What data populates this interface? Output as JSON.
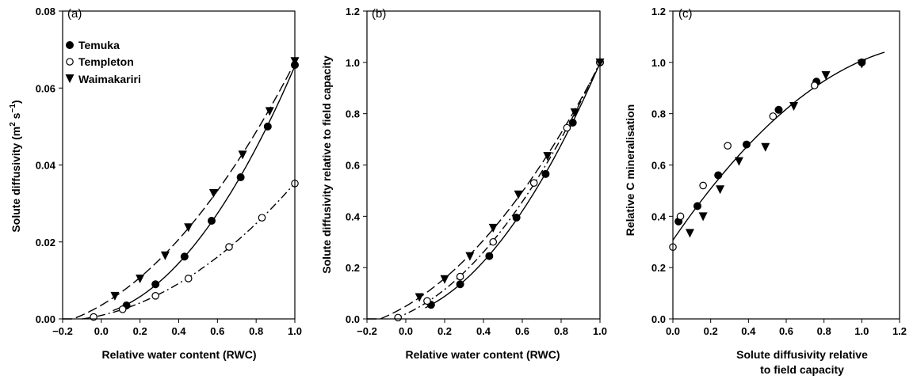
{
  "chart_data": [
    {
      "type": "scatter",
      "panel_label": "(a)",
      "xlabel": "Relative water content (RWC)",
      "ylabel": "Solute diffusivity (m² s⁻¹)",
      "ylabel_main": "Solute diffusivity (m",
      "ylabel_sup1": "2",
      "ylabel_mid": " s",
      "ylabel_sup2": "−1",
      "ylabel_end": ")",
      "xlim": [
        -0.2,
        1.0
      ],
      "ylim": [
        0,
        0.08
      ],
      "xticks": [
        -0.2,
        0.0,
        0.2,
        0.4,
        0.6,
        0.8,
        1.0
      ],
      "xtick_labels": [
        "−0.2",
        "0.0",
        "0.2",
        "0.4",
        "0.6",
        "0.8",
        "1.0"
      ],
      "yticks": [
        0,
        0.02,
        0.04,
        0.06,
        0.08
      ],
      "ytick_labels": [
        "0.00",
        "0.02",
        "0.04",
        "0.06",
        "0.08"
      ],
      "legend": [
        "Temuka",
        "Templeton",
        "Waimakariri"
      ],
      "legend_position": "top-left",
      "series": [
        {
          "name": "Temuka",
          "marker": "filled-circle",
          "line": "solid",
          "x": [
            0.13,
            0.28,
            0.43,
            0.57,
            0.72,
            0.86,
            1.0
          ],
          "y": [
            0.0035,
            0.009,
            0.0162,
            0.0255,
            0.0368,
            0.05,
            0.066
          ]
        },
        {
          "name": "Templeton",
          "marker": "open-circle",
          "line": "dash-dot",
          "x": [
            -0.04,
            0.11,
            0.28,
            0.45,
            0.66,
            0.83,
            1.0
          ],
          "y": [
            0.0005,
            0.0025,
            0.006,
            0.0105,
            0.0187,
            0.0263,
            0.0352
          ]
        },
        {
          "name": "Waimakariri",
          "marker": "filled-triangle-down",
          "line": "dashed",
          "x": [
            0.07,
            0.2,
            0.33,
            0.45,
            0.58,
            0.73,
            0.87,
            1.0
          ],
          "y": [
            0.006,
            0.0105,
            0.0165,
            0.0238,
            0.0327,
            0.0427,
            0.054,
            0.067
          ]
        }
      ]
    },
    {
      "type": "scatter",
      "panel_label": "(b)",
      "xlabel": "Relative water content (RWC)",
      "ylabel": "Solute diffusivity relative to field capacity",
      "xlim": [
        -0.2,
        1.0
      ],
      "ylim": [
        0,
        1.2
      ],
      "xticks": [
        -0.2,
        0.0,
        0.2,
        0.4,
        0.6,
        0.8,
        1.0
      ],
      "xtick_labels": [
        "−0.2",
        "0.0",
        "0.2",
        "0.4",
        "0.6",
        "0.8",
        "1.0"
      ],
      "yticks": [
        0,
        0.2,
        0.4,
        0.6,
        0.8,
        1.0,
        1.2
      ],
      "ytick_labels": [
        "0.0",
        "0.2",
        "0.4",
        "0.6",
        "0.8",
        "1.0",
        "1.2"
      ],
      "series": [
        {
          "name": "Temuka",
          "marker": "filled-circle",
          "line": "solid",
          "x": [
            0.13,
            0.28,
            0.43,
            0.57,
            0.72,
            0.86,
            1.0
          ],
          "y": [
            0.055,
            0.135,
            0.245,
            0.395,
            0.565,
            0.765,
            1.0
          ]
        },
        {
          "name": "Templeton",
          "marker": "open-circle",
          "line": "dash-dot",
          "x": [
            -0.04,
            0.11,
            0.28,
            0.45,
            0.66,
            0.83,
            1.0
          ],
          "y": [
            0.005,
            0.07,
            0.165,
            0.3,
            0.53,
            0.745,
            1.0
          ]
        },
        {
          "name": "Waimakariri",
          "marker": "filled-triangle-down",
          "line": "dashed",
          "x": [
            0.07,
            0.2,
            0.33,
            0.45,
            0.58,
            0.73,
            0.87,
            1.0
          ],
          "y": [
            0.085,
            0.155,
            0.245,
            0.355,
            0.485,
            0.635,
            0.805,
            1.0
          ]
        }
      ]
    },
    {
      "type": "scatter",
      "panel_label": "(c)",
      "xlabel_line1": "Solute diffusivity relative",
      "xlabel_line2": "to field capacity",
      "ylabel": "Relative C mineralisation",
      "xlim": [
        0,
        1.2
      ],
      "ylim": [
        0,
        1.2
      ],
      "xticks": [
        0,
        0.2,
        0.4,
        0.6,
        0.8,
        1.0,
        1.2
      ],
      "xtick_labels": [
        "0.0",
        "0.2",
        "0.4",
        "0.6",
        "0.8",
        "1.0",
        "1.2"
      ],
      "yticks": [
        0,
        0.2,
        0.4,
        0.6,
        0.8,
        1.0,
        1.2
      ],
      "ytick_labels": [
        "0.0",
        "0.2",
        "0.4",
        "0.6",
        "0.8",
        "1.0",
        "1.2"
      ],
      "fit_line": "solid",
      "series": [
        {
          "name": "Temuka",
          "marker": "filled-circle",
          "x": [
            0.03,
            0.13,
            0.24,
            0.39,
            0.56,
            0.76,
            1.0
          ],
          "y": [
            0.38,
            0.44,
            0.56,
            0.68,
            0.815,
            0.925,
            1.0
          ]
        },
        {
          "name": "Templeton",
          "marker": "open-circle",
          "x": [
            0.0,
            0.04,
            0.16,
            0.29,
            0.53,
            0.75
          ],
          "y": [
            0.28,
            0.4,
            0.52,
            0.675,
            0.79,
            0.91
          ]
        },
        {
          "name": "Waimakariri",
          "marker": "filled-triangle-down",
          "x": [
            0.09,
            0.16,
            0.25,
            0.35,
            0.49,
            0.64,
            0.81,
            1.0
          ],
          "y": [
            0.335,
            0.4,
            0.505,
            0.615,
            0.67,
            0.83,
            0.95,
            0.995
          ]
        }
      ]
    }
  ]
}
